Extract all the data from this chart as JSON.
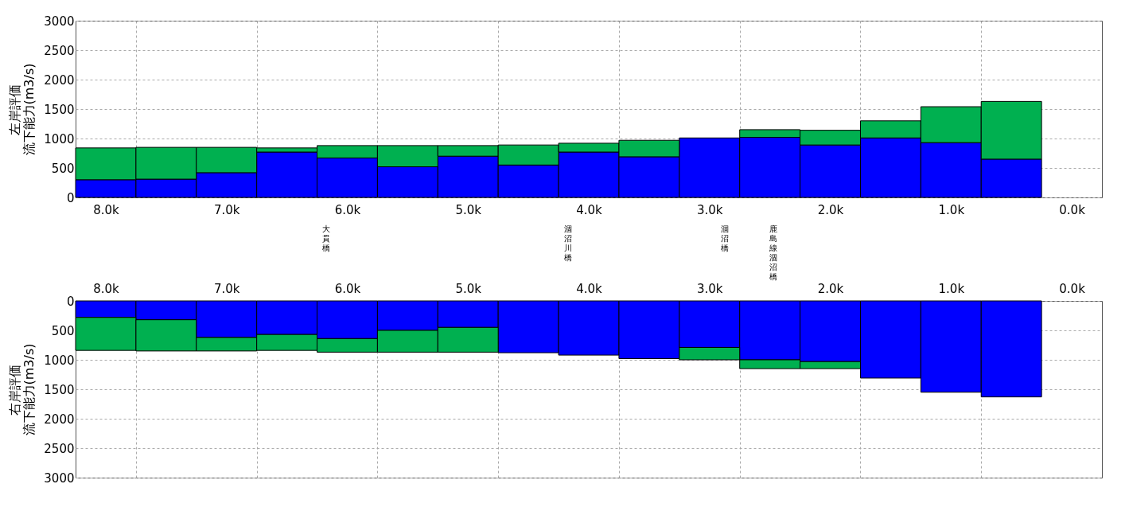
{
  "chart_data": [
    {
      "type": "bar",
      "stacked": true,
      "ylabel": "左岸評価流下能力(m3/s)",
      "x": [
        8.0,
        7.5,
        7.0,
        6.5,
        6.0,
        5.5,
        5.0,
        4.5,
        4.0,
        3.5,
        3.0,
        2.5,
        2.0,
        1.5,
        1.0,
        0.5
      ],
      "series": [
        {
          "color": "#0000ff",
          "values": [
            300,
            310,
            420,
            770,
            670,
            520,
            700,
            550,
            770,
            690,
            1010,
            1020,
            890,
            1010,
            930,
            650
          ]
        },
        {
          "color": "#00b050",
          "values": [
            540,
            540,
            430,
            70,
            210,
            360,
            180,
            340,
            150,
            280,
            0,
            130,
            250,
            290,
            610,
            980
          ]
        }
      ],
      "xlim": [
        8.25,
        -0.25
      ],
      "xticks": [
        {
          "value": 8.0,
          "label": "8.0k"
        },
        {
          "value": 7.75,
          "label": null
        },
        {
          "value": 7.0,
          "label": "7.0k"
        },
        {
          "value": 6.75,
          "label": null
        },
        {
          "value": 6.0,
          "label": "6.0k"
        },
        {
          "value": 5.75,
          "label": null
        },
        {
          "value": 5.0,
          "label": "5.0k"
        },
        {
          "value": 4.75,
          "label": null
        },
        {
          "value": 4.0,
          "label": "4.0k"
        },
        {
          "value": 3.75,
          "label": null
        },
        {
          "value": 3.0,
          "label": "3.0k"
        },
        {
          "value": 2.75,
          "label": null
        },
        {
          "value": 2.0,
          "label": "2.0k"
        },
        {
          "value": 1.75,
          "label": null
        },
        {
          "value": 1.0,
          "label": "1.0k"
        },
        {
          "value": 0.75,
          "label": null
        },
        {
          "value": 0.0,
          "label": "0.0k"
        }
      ],
      "ylim": [
        0,
        3000
      ],
      "yticks": [
        0,
        500,
        1000,
        1500,
        2000,
        2500,
        3000
      ],
      "grid": true,
      "legend": false,
      "annotations": [
        "大貫橋",
        "涸沼川橋",
        "涸沼橋",
        "鹿島線涸沼橋"
      ]
    },
    {
      "type": "bar",
      "stacked": true,
      "ylabel": "右岸評価流下能力(m3/s)",
      "x": [
        8.0,
        7.5,
        7.0,
        6.5,
        6.0,
        5.5,
        5.0,
        4.5,
        4.0,
        3.5,
        3.0,
        2.5,
        2.0,
        1.5,
        1.0,
        0.5
      ],
      "series": [
        {
          "color": "#0000ff",
          "values": [
            280,
            320,
            620,
            570,
            640,
            500,
            450,
            880,
            920,
            980,
            790,
            1000,
            1030,
            1310,
            1550,
            1630
          ]
        },
        {
          "color": "#00b050",
          "values": [
            560,
            530,
            230,
            270,
            230,
            370,
            420,
            0,
            0,
            0,
            210,
            150,
            120,
            0,
            0,
            0
          ]
        }
      ],
      "xlim": [
        8.25,
        -0.25
      ],
      "xticks": [
        {
          "value": 8.0,
          "label": "8.0k"
        },
        {
          "value": 7.75,
          "label": null
        },
        {
          "value": 7.0,
          "label": "7.0k"
        },
        {
          "value": 6.75,
          "label": null
        },
        {
          "value": 6.0,
          "label": "6.0k"
        },
        {
          "value": 5.75,
          "label": null
        },
        {
          "value": 5.0,
          "label": "5.0k"
        },
        {
          "value": 4.75,
          "label": null
        },
        {
          "value": 4.0,
          "label": "4.0k"
        },
        {
          "value": 3.75,
          "label": null
        },
        {
          "value": 3.0,
          "label": "3.0k"
        },
        {
          "value": 2.75,
          "label": null
        },
        {
          "value": 2.0,
          "label": "2.0k"
        },
        {
          "value": 1.75,
          "label": null
        },
        {
          "value": 1.0,
          "label": "1.0k"
        },
        {
          "value": 0.75,
          "label": null
        },
        {
          "value": 0.0,
          "label": "0.0k"
        }
      ],
      "ylim": [
        3000,
        0
      ],
      "yticks": [
        0,
        500,
        1000,
        1500,
        2000,
        2500,
        3000
      ],
      "grid": true,
      "legend": false
    }
  ]
}
